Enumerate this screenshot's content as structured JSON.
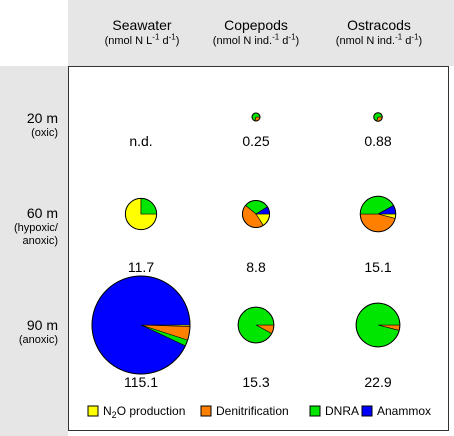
{
  "chart_data": {
    "type": "pie",
    "title": "",
    "columns": [
      {
        "name": "Seawater",
        "unit_prefix": "(nmol N L",
        "unit_exp1": "-1",
        "unit_mid": " d",
        "unit_exp2": "-1",
        "unit_suffix": ")"
      },
      {
        "name": "Copepods",
        "unit_prefix": "(nmol N ind.",
        "unit_exp1": "-1",
        "unit_mid": " d",
        "unit_exp2": "-1",
        "unit_suffix": ")"
      },
      {
        "name": "Ostracods",
        "unit_prefix": "(nmol N ind.",
        "unit_exp1": "-1",
        "unit_mid": " d",
        "unit_exp2": "-1",
        "unit_suffix": ")"
      }
    ],
    "rows": [
      {
        "depth": "20 m",
        "condition": [
          "(oxic)"
        ]
      },
      {
        "depth": "60 m",
        "condition": [
          "(hypoxic/",
          "anoxic)"
        ]
      },
      {
        "depth": "90 m",
        "condition": [
          "(anoxic)"
        ]
      }
    ],
    "series": [
      "N2O production",
      "Denitrification",
      "DNRA",
      "Anammox"
    ],
    "colors": [
      "#ffff00",
      "#ff8000",
      "#00e600",
      "#0000ff"
    ],
    "pies": [
      {
        "row": 0,
        "col": 0,
        "total_label": "n.d.",
        "total": null,
        "fractions": null
      },
      {
        "row": 0,
        "col": 1,
        "total_label": "0.25",
        "total": 0.25,
        "fractions": [
          0.0,
          0.3,
          0.7,
          0.0
        ]
      },
      {
        "row": 0,
        "col": 2,
        "total_label": "0.88",
        "total": 0.88,
        "fractions": [
          0.0,
          0.3,
          0.7,
          0.0
        ]
      },
      {
        "row": 1,
        "col": 0,
        "total_label": "11.7",
        "total": 11.7,
        "fractions": [
          0.75,
          0.0,
          0.25,
          0.0
        ]
      },
      {
        "row": 1,
        "col": 1,
        "total_label": "8.8",
        "total": 8.8,
        "fractions": [
          0.16,
          0.45,
          0.3,
          0.09
        ]
      },
      {
        "row": 1,
        "col": 2,
        "total_label": "15.1",
        "total": 15.1,
        "fractions": [
          0.04,
          0.46,
          0.42,
          0.08
        ]
      },
      {
        "row": 2,
        "col": 0,
        "total_label": "115.1",
        "total": 115.1,
        "fractions": [
          0.005,
          0.045,
          0.02,
          0.93
        ]
      },
      {
        "row": 2,
        "col": 1,
        "total_label": "15.3",
        "total": 15.3,
        "fractions": [
          0.0,
          0.08,
          0.92,
          0.0
        ]
      },
      {
        "row": 2,
        "col": 2,
        "total_label": "22.9",
        "total": 22.9,
        "fractions": [
          0.0,
          0.04,
          0.96,
          0.0
        ]
      }
    ],
    "legend": {
      "position": "bottom",
      "items": [
        {
          "pre": "N",
          "sub": "2",
          "post": "O production"
        },
        {
          "pre": "Denitrification",
          "sub": "",
          "post": ""
        },
        {
          "pre": "DNRA",
          "sub": "",
          "post": ""
        },
        {
          "pre": "Anammox",
          "sub": "",
          "post": ""
        }
      ]
    }
  }
}
